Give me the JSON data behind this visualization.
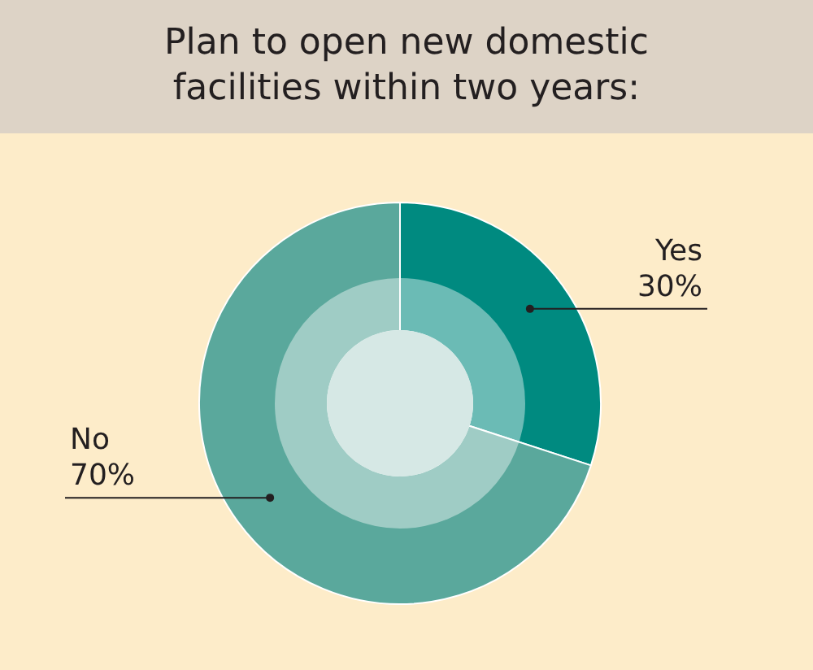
{
  "chart_data": {
    "type": "donut",
    "title": "Plan to open new domestic facilities within two years:",
    "categories": [
      "Yes",
      "No"
    ],
    "values": [
      30,
      70
    ],
    "colors": [
      "#008a80",
      "#5aa89c"
    ],
    "value_labels": [
      "30%",
      "70%"
    ],
    "legend": false
  }
}
